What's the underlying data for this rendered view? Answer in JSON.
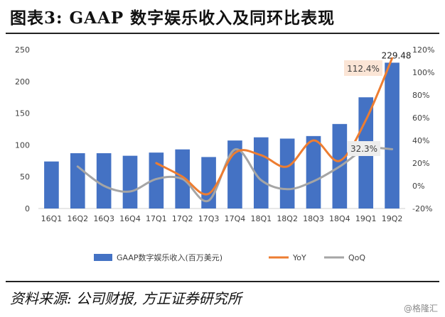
{
  "header": {
    "title": "图表3:    GAAP 数字娱乐收入及同环比表现"
  },
  "footer": {
    "source": "资料来源: 公司财报, 方正证券研究所",
    "watermark": "@格隆汇"
  },
  "chart_data": {
    "type": "bar",
    "categories": [
      "16Q1",
      "16Q2",
      "16Q3",
      "16Q4",
      "17Q1",
      "17Q2",
      "17Q3",
      "17Q4",
      "18Q1",
      "18Q2",
      "18Q3",
      "18Q4",
      "19Q1",
      "19Q2"
    ],
    "left_axis": {
      "ticks": [
        "0",
        "50",
        "100",
        "150",
        "200",
        "250"
      ],
      "range": [
        0,
        250
      ]
    },
    "right_axis": {
      "ticks": [
        "-20%",
        "0%",
        "20%",
        "40%",
        "60%",
        "80%",
        "100%",
        "120%"
      ],
      "range": [
        -20,
        120
      ]
    },
    "series": [
      {
        "name": "GAAP数字娱乐收入(百万美元)",
        "type": "bar",
        "axis": "left",
        "color": "#4472C4",
        "values": [
          74,
          87,
          87,
          83,
          88,
          93,
          81,
          107,
          112,
          110,
          114,
          133,
          175,
          229.48
        ]
      },
      {
        "name": "YoY",
        "type": "line",
        "axis": "right",
        "color": "#ED7D31",
        "values": [
          null,
          null,
          null,
          null,
          20,
          8,
          -7,
          29,
          27,
          17,
          40,
          22,
          58,
          112.4
        ]
      },
      {
        "name": "QoQ",
        "type": "line",
        "axis": "right",
        "color": "#A5A5A5",
        "values": [
          null,
          17,
          0,
          -5,
          6,
          6,
          -13,
          32,
          5,
          -3,
          4,
          17,
          32.3,
          32.3
        ]
      }
    ],
    "annotations": {
      "top_bar_value": "229.48",
      "yoy_label": "112.4%",
      "qoq_label": "32.3%"
    },
    "legend_position": "bottom",
    "grid": false
  }
}
